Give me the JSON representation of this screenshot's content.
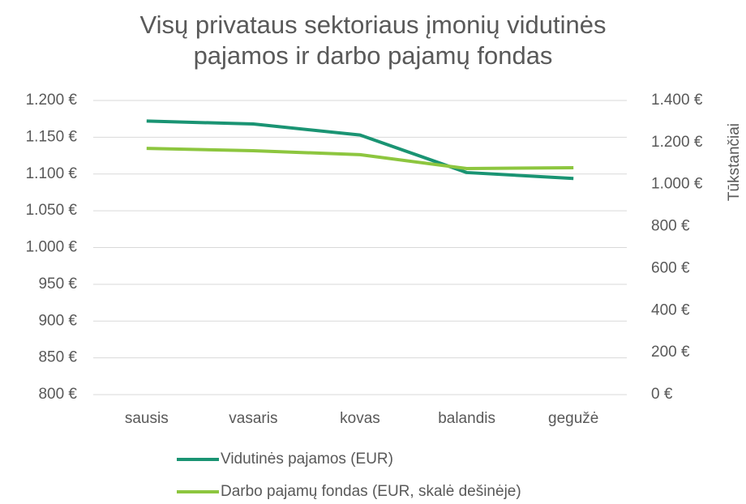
{
  "chart_data": {
    "type": "line",
    "title": "Visų privataus sektoriaus įmonių vidutinės pajamos ir darbo pajamų fondas",
    "y2_label": "Tūkstančiai",
    "categories": [
      "sausis",
      "vasaris",
      "kovas",
      "balandis",
      "gegužė"
    ],
    "series": [
      {
        "name": "Vidutinės pajamos (EUR)",
        "color": "#1a9473",
        "values": [
          1172,
          1168,
          1153,
          1102,
          1094
        ]
      },
      {
        "name": "Darbo pajamų fondas (EUR, skalė dešinėje)",
        "color": "#8dc63f",
        "axis": "y2",
        "values": [
          1172,
          1161,
          1142,
          1076,
          1080
        ]
      }
    ],
    "ylim": [
      800,
      1200
    ],
    "yticks": [
      {
        "value": 800,
        "label": "800 €"
      },
      {
        "value": 850,
        "label": "850 €"
      },
      {
        "value": 900,
        "label": "900 €"
      },
      {
        "value": 950,
        "label": "950 €"
      },
      {
        "value": 1000,
        "label": "1.000 €"
      },
      {
        "value": 1050,
        "label": "1.050 €"
      },
      {
        "value": 1100,
        "label": "1.100 €"
      },
      {
        "value": 1150,
        "label": "1.150 €"
      },
      {
        "value": 1200,
        "label": "1.200 €"
      }
    ],
    "y2lim": [
      0,
      1400
    ],
    "y2ticks": [
      {
        "value": 0,
        "label": "0 €"
      },
      {
        "value": 200,
        "label": "200 €"
      },
      {
        "value": 400,
        "label": "400 €"
      },
      {
        "value": 600,
        "label": "600 €"
      },
      {
        "value": 800,
        "label": "800 €"
      },
      {
        "value": 1000,
        "label": "1.000 €"
      },
      {
        "value": 1200,
        "label": "1.200 €"
      },
      {
        "value": 1400,
        "label": "1.400 €"
      }
    ],
    "grid": true,
    "legend": "bottom"
  }
}
